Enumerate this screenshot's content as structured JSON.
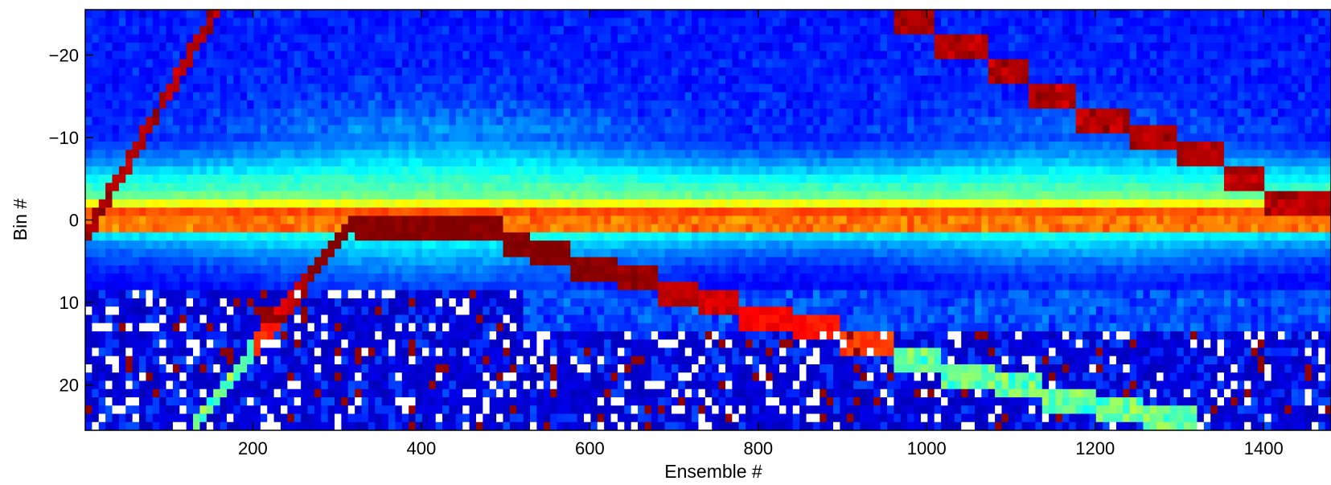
{
  "chart_data": {
    "type": "heatmap",
    "title": "",
    "xlabel": "Ensemble #",
    "ylabel": "Bin #",
    "xlim": [
      1,
      1480
    ],
    "ylim": [
      -25.5,
      25.5
    ],
    "y_reversed": true,
    "grid": false,
    "colormap": "jet",
    "x_ticks": [
      200,
      400,
      600,
      800,
      1000,
      1200,
      1400
    ],
    "x_tick_labels": [
      "200",
      "400",
      "600",
      "800",
      "1000",
      "1200",
      "1400"
    ],
    "y_ticks": [
      -20,
      -10,
      0,
      10,
      20
    ],
    "y_tick_labels": [
      "−20",
      "−10",
      "0",
      "10",
      "20"
    ],
    "features": {
      "surface_bin": 0,
      "lower_track_steps": [
        {
          "x": [
            500,
            530
          ],
          "bin": 3
        },
        {
          "x": [
            530,
            580
          ],
          "bin": 4
        },
        {
          "x": [
            580,
            630
          ],
          "bin": 6
        },
        {
          "x": [
            630,
            680
          ],
          "bin": 7
        },
        {
          "x": [
            680,
            730
          ],
          "bin": 9
        },
        {
          "x": [
            730,
            780
          ],
          "bin": 10
        },
        {
          "x": [
            780,
            840
          ],
          "bin": 12
        },
        {
          "x": [
            840,
            900
          ],
          "bin": 13
        },
        {
          "x": [
            900,
            960
          ],
          "bin": 15
        },
        {
          "x": [
            960,
            1020
          ],
          "bin": 17
        },
        {
          "x": [
            1020,
            1080
          ],
          "bin": 19
        },
        {
          "x": [
            1080,
            1140
          ],
          "bin": 20
        },
        {
          "x": [
            1140,
            1200
          ],
          "bin": 22
        },
        {
          "x": [
            1200,
            1260
          ],
          "bin": 23
        },
        {
          "x": [
            1260,
            1320
          ],
          "bin": 24
        }
      ],
      "upper_track_steps": [
        {
          "x": [
            960,
            1010
          ],
          "bin": -24
        },
        {
          "x": [
            1010,
            1070
          ],
          "bin": -21
        },
        {
          "x": [
            1070,
            1120
          ],
          "bin": -18
        },
        {
          "x": [
            1120,
            1180
          ],
          "bin": -15
        },
        {
          "x": [
            1180,
            1240
          ],
          "bin": -12
        },
        {
          "x": [
            1240,
            1300
          ],
          "bin": -10
        },
        {
          "x": [
            1300,
            1350
          ],
          "bin": -8
        },
        {
          "x": [
            1350,
            1400
          ],
          "bin": -5
        },
        {
          "x": [
            1400,
            1480
          ],
          "bin": -2
        }
      ],
      "descending_line": {
        "x": [
          1,
          160
        ],
        "bin": [
          2,
          -26
        ]
      },
      "ascending_ramp": {
        "x": [
          130,
          320
        ],
        "bin": [
          25,
          0
        ]
      },
      "plateau": {
        "x": [
          320,
          500
        ],
        "bin": 0
      }
    }
  },
  "colors": {
    "background_blue": "#0000b4",
    "jet_colormap": [
      "#00008f",
      "#0000ff",
      "#0080ff",
      "#00ffff",
      "#80ff80",
      "#ffff00",
      "#ff8000",
      "#ff0000",
      "#800000"
    ]
  }
}
